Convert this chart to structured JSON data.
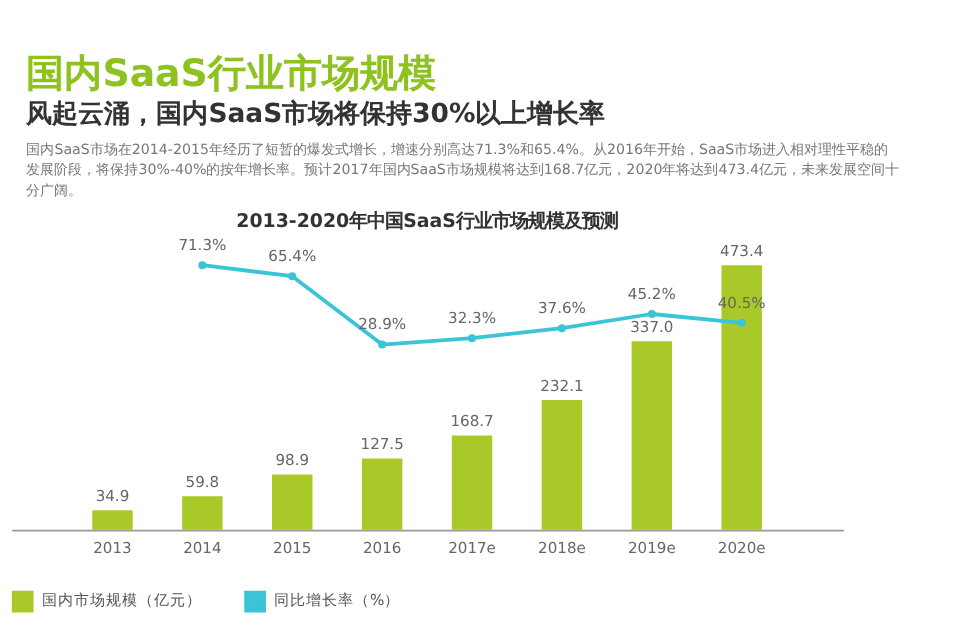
{
  "chart_data": {
    "type": "bar",
    "title": "2013-2020年中国SaaS行业市场规模及预测",
    "annotations": [
      "国内SaaS行业市场规模",
      "风起云涌，国内SaaS市场将保持30%以上增长率",
      "国内SaaS市场在2014-2015年经历了短暂的爆发式增长，增速分别高达71.3%和65.4%。从2016年开始，SaaS市场进入相对理性平稳的发展阶段，将保持30%-40%的按年增长率。预计2017年国内SaaS市场规模将达到168.7亿元，2020年将达到473.4亿元，未来发展空间十分广阔。"
    ],
    "categories": [
      "2013",
      "2014",
      "2015",
      "2016",
      "2017e",
      "2018e",
      "2019e",
      "2020e"
    ],
    "series": [
      {
        "name": "国内市场规模（亿元）",
        "color": "#a9c928",
        "values": [
          34.9,
          59.8,
          98.9,
          127.5,
          168.7,
          232.1,
          337.0,
          473.4
        ],
        "value_labels": [
          "34.9",
          "59.8",
          "98.9",
          "127.5",
          "168.7",
          "232.1",
          "337.0",
          "473.4"
        ]
      },
      {
        "name": "同比增长率（%）",
        "type": "line",
        "axis": "y2",
        "color": "#3bc3d6",
        "values": [
          null,
          71.3,
          65.4,
          28.9,
          32.3,
          37.6,
          45.2,
          40.5
        ],
        "value_labels": [
          null,
          "71.3%",
          "65.4%",
          "28.9%",
          "32.3%",
          "37.6%",
          "45.2%",
          "40.5%"
        ]
      }
    ],
    "marker": "circle",
    "line_style": "solid",
    "legend": "bottom",
    "grid": false
  }
}
